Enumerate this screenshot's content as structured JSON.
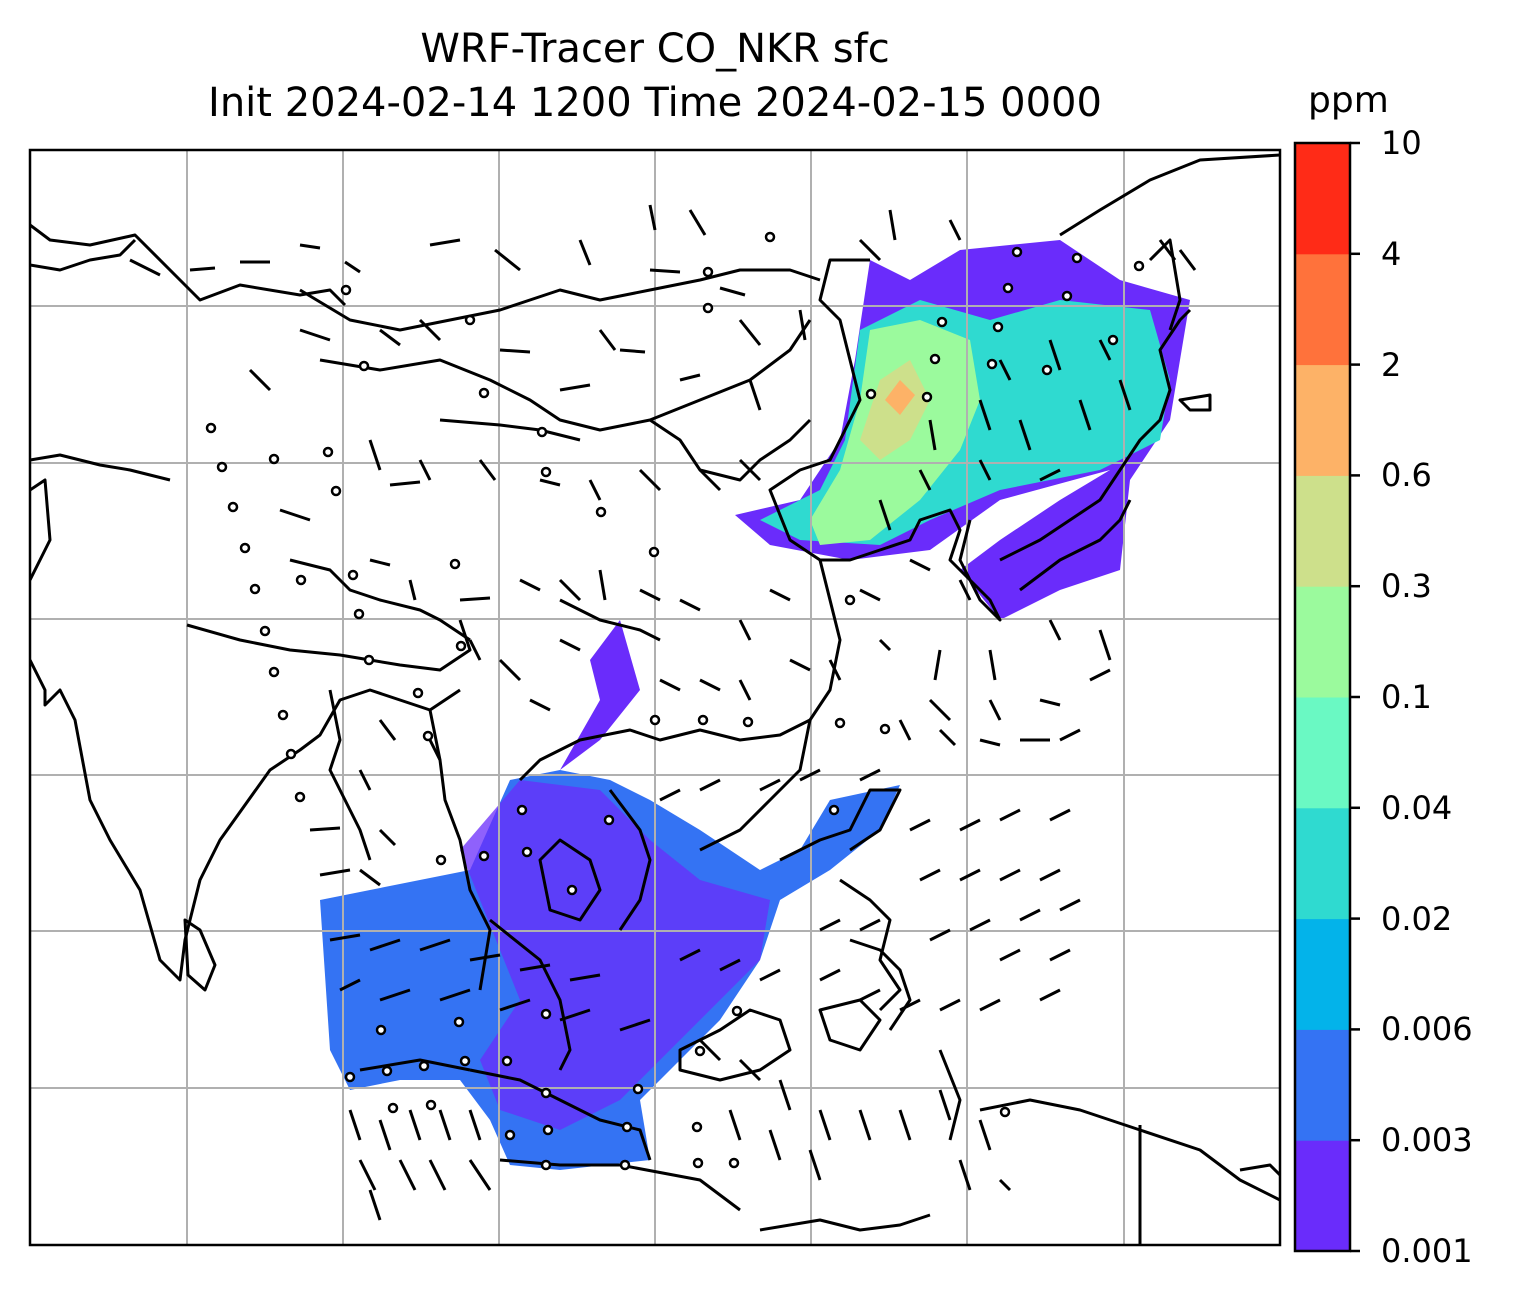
{
  "title": {
    "line1": "WRF-Tracer CO_NKR sfc",
    "line2": "Init 2024-02-14 1200 Time 2024-02-15 0000"
  },
  "colorbar": {
    "unit": "ppm",
    "levels": [
      "0.001",
      "0.003",
      "0.006",
      "0.02",
      "0.04",
      "0.1",
      "0.3",
      "0.6",
      "2",
      "4",
      "10"
    ],
    "colors": [
      "#6a2cfb",
      "#3473f3",
      "#03b3ea",
      "#2fdad0",
      "#6af9c3",
      "#9bfa9d",
      "#cde08b",
      "#fdb267",
      "#ff723b",
      "#ff2b17"
    ]
  },
  "map": {
    "gridlines": true,
    "barb_color": "#000000",
    "coastline_color": "#000000"
  }
}
